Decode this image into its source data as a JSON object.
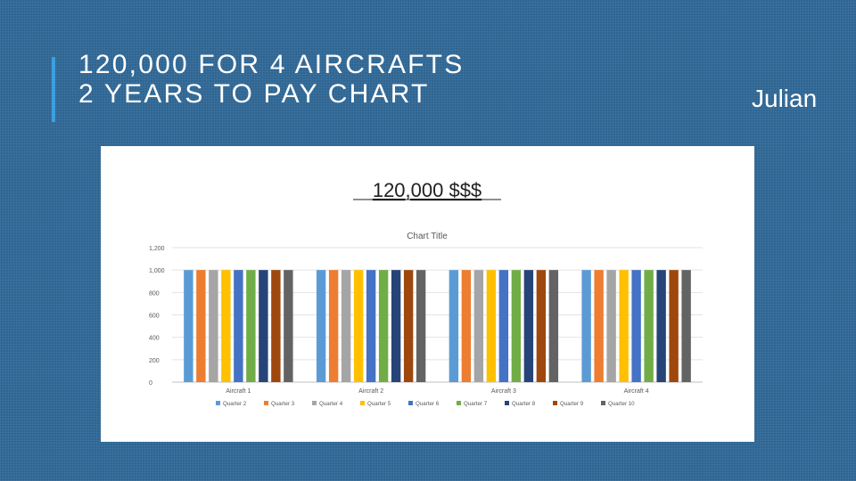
{
  "slide": {
    "title_line1": "120,000 FOR 4 AIRCRAFTS",
    "title_line2": "2 YEARS TO PAY CHART",
    "author": "Julian",
    "accent_color": "#3aa0e0",
    "background_color": "#2d6593"
  },
  "chart_data": {
    "type": "bar",
    "heading": "120,000 $$$",
    "title": "Chart Title",
    "categories": [
      "Aircraft 1",
      "Aircraft 2",
      "Aircraft 3",
      "Aircraft 4"
    ],
    "series": [
      {
        "name": "Quarter 2",
        "color": "#5b9bd5",
        "values": [
          1000,
          1000,
          1000,
          1000
        ]
      },
      {
        "name": "Quarter 3",
        "color": "#ed7d31",
        "values": [
          1000,
          1000,
          1000,
          1000
        ]
      },
      {
        "name": "Quarter 4",
        "color": "#a5a5a5",
        "values": [
          1000,
          1000,
          1000,
          1000
        ]
      },
      {
        "name": "Quarter 5",
        "color": "#ffc000",
        "values": [
          1000,
          1000,
          1000,
          1000
        ]
      },
      {
        "name": "Quarter 6",
        "color": "#4472c4",
        "values": [
          1000,
          1000,
          1000,
          1000
        ]
      },
      {
        "name": "Quarter 7",
        "color": "#70ad47",
        "values": [
          1000,
          1000,
          1000,
          1000
        ]
      },
      {
        "name": "Quarter 8",
        "color": "#264478",
        "values": [
          1000,
          1000,
          1000,
          1000
        ]
      },
      {
        "name": "Quarter 9",
        "color": "#9e480e",
        "values": [
          1000,
          1000,
          1000,
          1000
        ]
      },
      {
        "name": "Quarter 10",
        "color": "#636363",
        "values": [
          1000,
          1000,
          1000,
          1000
        ]
      }
    ],
    "yticks": [
      "0",
      "200",
      "400",
      "600",
      "800",
      "1,000",
      "1,200"
    ],
    "ylim": [
      0,
      1200
    ],
    "grid": true,
    "legend_position": "bottom"
  }
}
